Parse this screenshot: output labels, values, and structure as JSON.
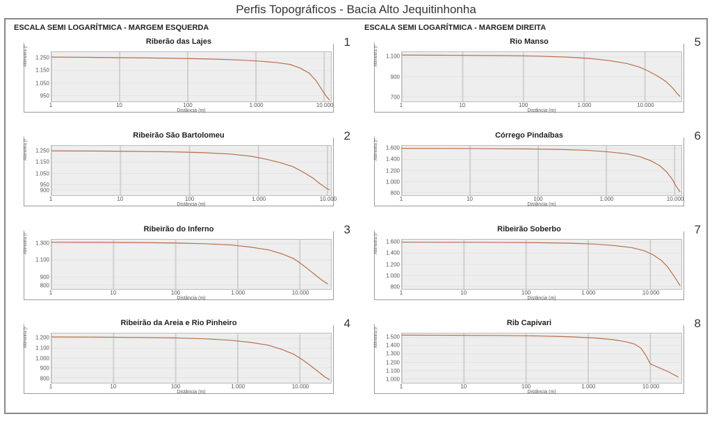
{
  "main_title": "Perfis Topográficos - Bacia Alto Jequitinhonha",
  "left_col_title": "ESCALA SEMI LOGARÍTMICA - MARGEM ESQUERDA",
  "right_col_title": "ESCALA SEMI LOGARÍTMICA - MARGEM DIREITA",
  "y_axis_label": "Altimetria (m)",
  "x_axis_label": "Distância (m)",
  "line_color": "#b86e4a",
  "plot_bg": "#eeeeee",
  "grid_color": "#d0d0d0",
  "x_ticks": [
    "1",
    "10",
    "100",
    "1.000",
    "10.000"
  ],
  "x_log_min": 0,
  "x_log_max": 4.6,
  "charts": [
    {
      "num": "1",
      "title": "Riberão das Lajes",
      "y_ticks": [
        "1.250",
        "1.150",
        "1.050",
        "950"
      ],
      "y_min": 900,
      "y_max": 1300,
      "x_log_max": 4.1,
      "profile": [
        [
          0,
          1260
        ],
        [
          0.5,
          1258
        ],
        [
          1.0,
          1255
        ],
        [
          1.5,
          1252
        ],
        [
          2.0,
          1248
        ],
        [
          2.4,
          1243
        ],
        [
          2.8,
          1235
        ],
        [
          3.1,
          1225
        ],
        [
          3.3,
          1215
        ],
        [
          3.5,
          1200
        ],
        [
          3.65,
          1170
        ],
        [
          3.78,
          1130
        ],
        [
          3.88,
          1070
        ],
        [
          3.95,
          1010
        ],
        [
          4.02,
          950
        ],
        [
          4.08,
          910
        ]
      ]
    },
    {
      "num": "2",
      "title": "Ribeirão São Bartolomeu",
      "y_ticks": [
        "1.250",
        "1.150",
        "1.050",
        "950",
        "900"
      ],
      "y_min": 850,
      "y_max": 1300,
      "x_log_max": 4.05,
      "profile": [
        [
          0,
          1255
        ],
        [
          0.6,
          1253
        ],
        [
          1.2,
          1250
        ],
        [
          1.8,
          1245
        ],
        [
          2.2,
          1238
        ],
        [
          2.6,
          1225
        ],
        [
          2.9,
          1205
        ],
        [
          3.1,
          1180
        ],
        [
          3.3,
          1150
        ],
        [
          3.5,
          1110
        ],
        [
          3.65,
          1060
        ],
        [
          3.78,
          1010
        ],
        [
          3.88,
          960
        ],
        [
          3.98,
          915
        ],
        [
          4.03,
          900
        ]
      ]
    },
    {
      "num": "3",
      "title": "Ribeirão do Inferno",
      "y_ticks": [
        "1.300",
        "1.100",
        "900",
        "800"
      ],
      "y_min": 750,
      "y_max": 1350,
      "x_log_max": 4.5,
      "profile": [
        [
          0,
          1320
        ],
        [
          0.7,
          1318
        ],
        [
          1.4,
          1315
        ],
        [
          2.0,
          1310
        ],
        [
          2.5,
          1300
        ],
        [
          2.9,
          1285
        ],
        [
          3.2,
          1260
        ],
        [
          3.5,
          1225
        ],
        [
          3.7,
          1180
        ],
        [
          3.9,
          1120
        ],
        [
          4.05,
          1040
        ],
        [
          4.15,
          980
        ],
        [
          4.25,
          920
        ],
        [
          4.35,
          860
        ],
        [
          4.45,
          810
        ]
      ]
    },
    {
      "num": "4",
      "title": "Ribeirão da Areia e Rio Pinheiro",
      "y_ticks": [
        "1.200",
        "1.100",
        "1.000",
        "900",
        "800"
      ],
      "y_min": 750,
      "y_max": 1250,
      "x_log_max": 4.5,
      "profile": [
        [
          0,
          1215
        ],
        [
          0.7,
          1213
        ],
        [
          1.4,
          1210
        ],
        [
          2.0,
          1205
        ],
        [
          2.5,
          1195
        ],
        [
          2.9,
          1180
        ],
        [
          3.2,
          1160
        ],
        [
          3.5,
          1130
        ],
        [
          3.7,
          1090
        ],
        [
          3.9,
          1040
        ],
        [
          4.05,
          980
        ],
        [
          4.18,
          920
        ],
        [
          4.3,
          860
        ],
        [
          4.4,
          810
        ],
        [
          4.48,
          780
        ]
      ]
    },
    {
      "num": "5",
      "title": "Rio Manso",
      "y_ticks": [
        "1.100",
        "900",
        "700"
      ],
      "y_min": 650,
      "y_max": 1150,
      "x_log_max": 4.6,
      "profile": [
        [
          0,
          1120
        ],
        [
          0.8,
          1118
        ],
        [
          1.6,
          1115
        ],
        [
          2.2,
          1110
        ],
        [
          2.7,
          1100
        ],
        [
          3.1,
          1085
        ],
        [
          3.4,
          1065
        ],
        [
          3.7,
          1035
        ],
        [
          3.9,
          1000
        ],
        [
          4.05,
          960
        ],
        [
          4.2,
          910
        ],
        [
          4.35,
          850
        ],
        [
          4.45,
          790
        ],
        [
          4.53,
          730
        ],
        [
          4.58,
          700
        ]
      ]
    },
    {
      "num": "6",
      "title": "Córrego Pindaíbas",
      "y_ticks": [
        "1.600",
        "1.400",
        "1.200",
        "1.000",
        "800"
      ],
      "y_min": 750,
      "y_max": 1650,
      "x_log_max": 4.1,
      "profile": [
        [
          0,
          1605
        ],
        [
          0.6,
          1603
        ],
        [
          1.2,
          1600
        ],
        [
          1.8,
          1595
        ],
        [
          2.3,
          1585
        ],
        [
          2.7,
          1570
        ],
        [
          3.0,
          1545
        ],
        [
          3.3,
          1505
        ],
        [
          3.5,
          1450
        ],
        [
          3.65,
          1380
        ],
        [
          3.78,
          1290
        ],
        [
          3.88,
          1180
        ],
        [
          3.96,
          1050
        ],
        [
          4.02,
          920
        ],
        [
          4.08,
          810
        ]
      ]
    },
    {
      "num": "7",
      "title": "Ribeirão Soberbo",
      "y_ticks": [
        "1.600",
        "1.400",
        "1.200",
        "1.000",
        "800"
      ],
      "y_min": 750,
      "y_max": 1650,
      "x_log_max": 4.5,
      "profile": [
        [
          0,
          1605
        ],
        [
          0.8,
          1603
        ],
        [
          1.6,
          1600
        ],
        [
          2.2,
          1595
        ],
        [
          2.7,
          1585
        ],
        [
          3.1,
          1570
        ],
        [
          3.4,
          1545
        ],
        [
          3.7,
          1505
        ],
        [
          3.9,
          1450
        ],
        [
          4.05,
          1370
        ],
        [
          4.18,
          1270
        ],
        [
          4.28,
          1150
        ],
        [
          4.36,
          1020
        ],
        [
          4.43,
          900
        ],
        [
          4.48,
          810
        ]
      ]
    },
    {
      "num": "8",
      "title": "Rib Capivari",
      "y_ticks": [
        "1.500",
        "1.400",
        "1.300",
        "1.200",
        "1.100",
        "1.000"
      ],
      "y_min": 950,
      "y_max": 1550,
      "x_log_max": 4.5,
      "profile": [
        [
          0,
          1530
        ],
        [
          0.8,
          1528
        ],
        [
          1.6,
          1525
        ],
        [
          2.2,
          1520
        ],
        [
          2.7,
          1510
        ],
        [
          3.1,
          1495
        ],
        [
          3.4,
          1475
        ],
        [
          3.6,
          1450
        ],
        [
          3.75,
          1420
        ],
        [
          3.85,
          1370
        ],
        [
          3.93,
          1280
        ],
        [
          4.0,
          1180
        ],
        [
          4.15,
          1130
        ],
        [
          4.3,
          1080
        ],
        [
          4.45,
          1020
        ]
      ]
    }
  ]
}
